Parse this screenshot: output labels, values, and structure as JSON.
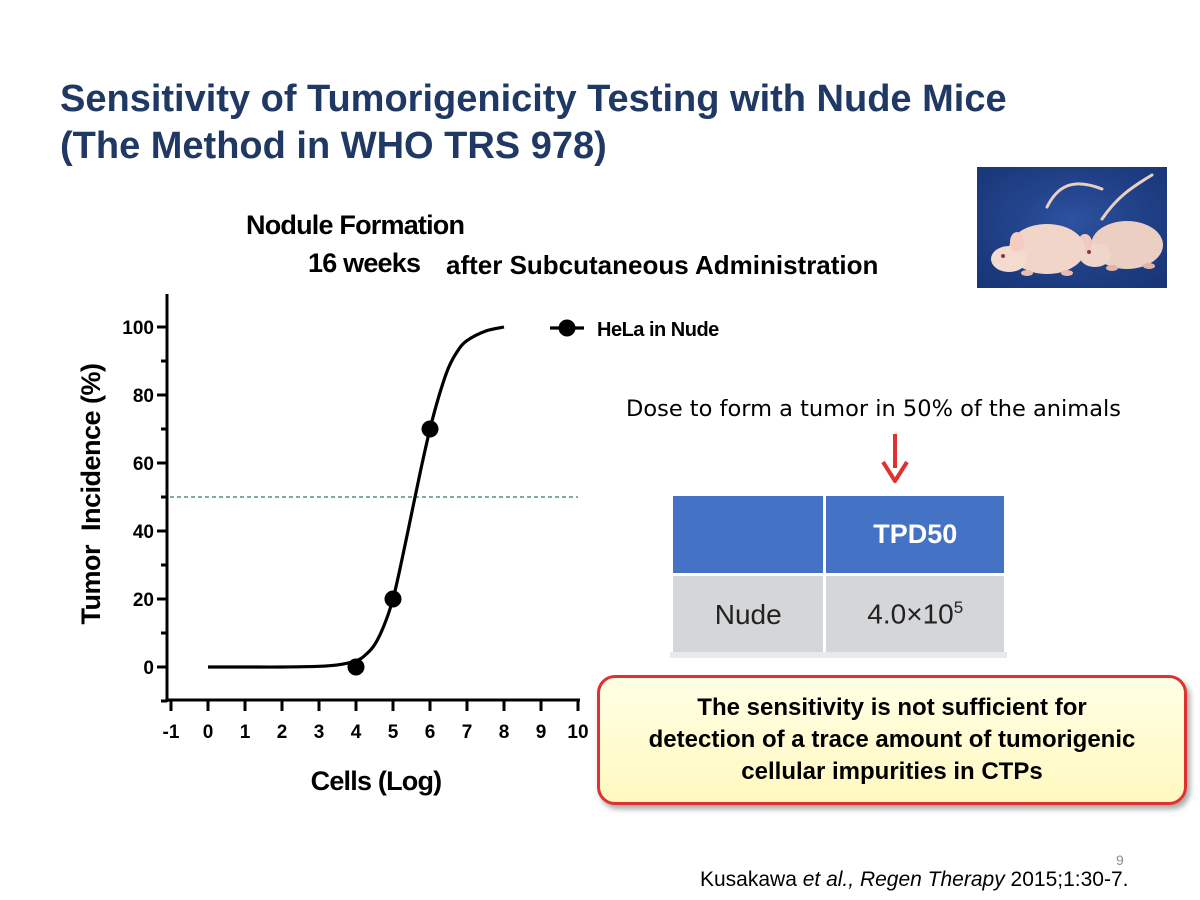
{
  "slide": {
    "title_line1": "Sensitivity of Tumorigenicity Testing with Nude Mice",
    "title_line2": "(The Method in WHO TRS 978)",
    "page_number": "9"
  },
  "photo": {
    "icon": "nude-mice-photo"
  },
  "chart_data": {
    "type": "scatter",
    "title_line1": "Nodule Formation",
    "title_line2_bold": "16 weeks",
    "title_line2_rest": "after Subcutaneous Administration",
    "xlabel": "Cells (Log)",
    "ylabel": "Tumor  Incidence (%)",
    "xlim": [
      -1,
      10
    ],
    "ylim": [
      -10,
      110
    ],
    "xticks": [
      -1,
      0,
      1,
      2,
      3,
      4,
      5,
      6,
      7,
      8,
      9,
      10
    ],
    "yticks": [
      0,
      20,
      40,
      60,
      80,
      100
    ],
    "grid": false,
    "legend_position": "top-right",
    "series": [
      {
        "name": "HeLa in Nude",
        "points": [
          {
            "x": 4,
            "y": 0
          },
          {
            "x": 5,
            "y": 20
          },
          {
            "x": 6,
            "y": 70
          }
        ],
        "fit_curve": {
          "x": [
            0,
            1,
            2,
            3,
            3.5,
            4,
            4.25,
            4.5,
            4.75,
            5,
            5.25,
            5.5,
            5.75,
            6,
            6.25,
            6.5,
            6.75,
            7,
            7.5,
            8
          ],
          "y": [
            0,
            0,
            0,
            0.2,
            0.6,
            1.8,
            3.5,
            6.5,
            12,
            20,
            32,
            45,
            58,
            70,
            80,
            88,
            93,
            96,
            98.8,
            100
          ]
        }
      }
    ],
    "reference_line": {
      "y": 50,
      "color": "#2E7D5B",
      "style": "dashed"
    }
  },
  "annotation": {
    "label": "Dose to form a tumor in 50% of the animals",
    "arrow_color": "#E03030"
  },
  "table": {
    "header": [
      "",
      "TPD50"
    ],
    "rows": [
      {
        "label": "Nude",
        "value_mantissa": "4.0",
        "value_times": "×",
        "value_base": "10",
        "value_exp": "5"
      }
    ],
    "header_color": "#4472C4",
    "body_color": "#D5D6D8"
  },
  "callout": {
    "line1": "The sensitivity is not sufficient for",
    "line2": "detection of a trace amount of tumorigenic",
    "line3": "cellular impurities in CTPs"
  },
  "citation": {
    "author": "Kusakawa ",
    "etal": "et al., ",
    "journal": "Regen Therapy",
    "rest": " 2015;1:30-7."
  }
}
